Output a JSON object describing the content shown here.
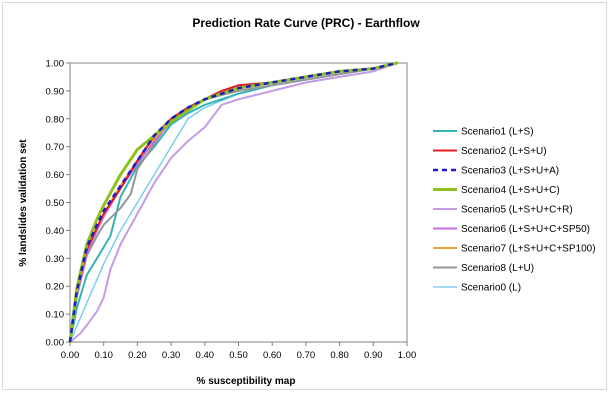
{
  "chart_data": {
    "type": "line",
    "title": "Prediction Rate Curve (PRC) - Earthflow",
    "xlabel": "% susceptibility map",
    "ylabel": "% landslides validation set",
    "xlim": [
      0,
      1
    ],
    "ylim": [
      0,
      1
    ],
    "x_ticks": [
      "0.00",
      "0.10",
      "0.20",
      "0.30",
      "0.40",
      "0.50",
      "0.60",
      "0.70",
      "0.80",
      "0.90",
      "1.00"
    ],
    "y_ticks": [
      "0.00",
      "0.10",
      "0.20",
      "0.30",
      "0.40",
      "0.50",
      "0.60",
      "0.70",
      "0.80",
      "0.90",
      "1.00"
    ],
    "grid": false,
    "legend_position": "right",
    "series": [
      {
        "name": "Scenario1 (L+S)",
        "color": "#33b3b3",
        "dash": "solid",
        "width": 2,
        "x": [
          0,
          0.02,
          0.05,
          0.08,
          0.1,
          0.12,
          0.15,
          0.2,
          0.25,
          0.3,
          0.35,
          0.4,
          0.5,
          0.6,
          0.7,
          0.8,
          0.9,
          0.97
        ],
        "y": [
          0,
          0.12,
          0.24,
          0.3,
          0.34,
          0.38,
          0.52,
          0.63,
          0.7,
          0.78,
          0.82,
          0.85,
          0.89,
          0.92,
          0.94,
          0.96,
          0.98,
          1.0
        ]
      },
      {
        "name": "Scenario2 (L+S+U)",
        "color": "#e02020",
        "dash": "solid",
        "width": 2,
        "x": [
          0,
          0.02,
          0.05,
          0.08,
          0.1,
          0.15,
          0.2,
          0.25,
          0.3,
          0.35,
          0.4,
          0.45,
          0.5,
          0.6,
          0.7,
          0.8,
          0.9,
          0.97
        ],
        "y": [
          0,
          0.18,
          0.33,
          0.41,
          0.46,
          0.55,
          0.65,
          0.74,
          0.8,
          0.84,
          0.87,
          0.9,
          0.92,
          0.93,
          0.95,
          0.97,
          0.98,
          1.0
        ]
      },
      {
        "name": "Scenario3 (L+S+U+A)",
        "color": "#1c1cc8",
        "dash": "dashed",
        "width": 2.5,
        "x": [
          0,
          0.02,
          0.05,
          0.08,
          0.1,
          0.15,
          0.2,
          0.25,
          0.3,
          0.35,
          0.4,
          0.45,
          0.5,
          0.6,
          0.7,
          0.8,
          0.9,
          0.97
        ],
        "y": [
          0,
          0.18,
          0.34,
          0.42,
          0.47,
          0.56,
          0.65,
          0.74,
          0.8,
          0.84,
          0.87,
          0.89,
          0.91,
          0.93,
          0.95,
          0.97,
          0.98,
          1.0
        ]
      },
      {
        "name": "Scenario4 (L+S+U+C)",
        "color": "#8ec21a",
        "dash": "solid",
        "width": 3,
        "x": [
          0,
          0.02,
          0.05,
          0.08,
          0.1,
          0.15,
          0.2,
          0.25,
          0.3,
          0.35,
          0.4,
          0.45,
          0.5,
          0.6,
          0.7,
          0.8,
          0.9,
          0.97
        ],
        "y": [
          0,
          0.19,
          0.35,
          0.44,
          0.49,
          0.6,
          0.69,
          0.74,
          0.79,
          0.83,
          0.87,
          0.89,
          0.91,
          0.93,
          0.95,
          0.97,
          0.98,
          1.0
        ]
      },
      {
        "name": "Scenario5 (L+S+U+C+R)",
        "color": "#c39be6",
        "dash": "solid",
        "width": 2,
        "x": [
          0,
          0.03,
          0.05,
          0.08,
          0.1,
          0.12,
          0.15,
          0.2,
          0.25,
          0.3,
          0.35,
          0.4,
          0.45,
          0.5,
          0.6,
          0.7,
          0.8,
          0.9,
          0.97
        ],
        "y": [
          0,
          0.03,
          0.06,
          0.11,
          0.16,
          0.26,
          0.35,
          0.46,
          0.57,
          0.66,
          0.72,
          0.77,
          0.85,
          0.87,
          0.9,
          0.93,
          0.95,
          0.97,
          1.0
        ]
      },
      {
        "name": "Scenario6 (L+S+U+C+SP50)",
        "color": "#c86ee0",
        "dash": "solid",
        "width": 2,
        "x": [
          0,
          0.02,
          0.05,
          0.08,
          0.1,
          0.15,
          0.2,
          0.25,
          0.3,
          0.35,
          0.4,
          0.45,
          0.5,
          0.6,
          0.7,
          0.8,
          0.9,
          0.97
        ],
        "y": [
          0,
          0.17,
          0.32,
          0.4,
          0.45,
          0.55,
          0.64,
          0.72,
          0.79,
          0.84,
          0.87,
          0.9,
          0.92,
          0.93,
          0.95,
          0.97,
          0.98,
          1.0
        ]
      },
      {
        "name": "Scenario7 (L+S+U+C+SP100)",
        "color": "#f0a040",
        "dash": "solid",
        "width": 2,
        "x": [
          0,
          0.02,
          0.05,
          0.08,
          0.1,
          0.15,
          0.2,
          0.25,
          0.3,
          0.35,
          0.4,
          0.45,
          0.5,
          0.6,
          0.7,
          0.8,
          0.9,
          0.97
        ],
        "y": [
          0,
          0.18,
          0.33,
          0.41,
          0.46,
          0.56,
          0.65,
          0.73,
          0.79,
          0.84,
          0.87,
          0.9,
          0.91,
          0.93,
          0.95,
          0.97,
          0.98,
          1.0
        ]
      },
      {
        "name": "Scenario8 (L+U)",
        "color": "#969696",
        "dash": "solid",
        "width": 2,
        "x": [
          0,
          0.02,
          0.05,
          0.08,
          0.1,
          0.15,
          0.18,
          0.2,
          0.25,
          0.3,
          0.35,
          0.4,
          0.5,
          0.6,
          0.7,
          0.8,
          0.9,
          0.97
        ],
        "y": [
          0,
          0.16,
          0.31,
          0.38,
          0.42,
          0.48,
          0.53,
          0.62,
          0.71,
          0.8,
          0.84,
          0.87,
          0.9,
          0.92,
          0.94,
          0.96,
          0.98,
          1.0
        ]
      },
      {
        "name": "Scenario0 (L)",
        "color": "#6cc8f0",
        "dash": "solid",
        "width": 1.3,
        "x": [
          0,
          0.05,
          0.1,
          0.15,
          0.2,
          0.25,
          0.3,
          0.33,
          0.35,
          0.4,
          0.5,
          0.6,
          0.7,
          0.8,
          0.9,
          0.97
        ],
        "y": [
          0,
          0.14,
          0.28,
          0.4,
          0.5,
          0.6,
          0.7,
          0.76,
          0.8,
          0.84,
          0.89,
          0.92,
          0.94,
          0.96,
          0.98,
          1.0
        ]
      }
    ]
  }
}
